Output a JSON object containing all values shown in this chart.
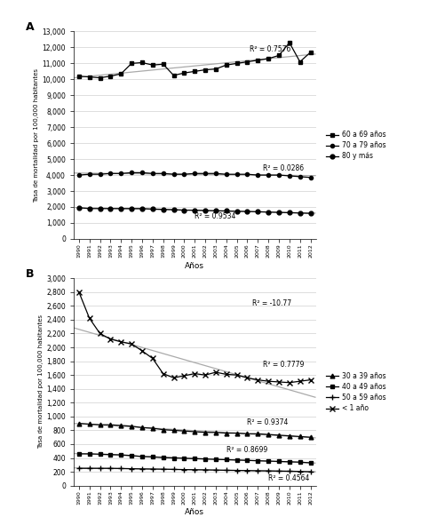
{
  "years": [
    1990,
    1991,
    1992,
    1993,
    1994,
    1995,
    1996,
    1997,
    1998,
    1999,
    2000,
    2001,
    2002,
    2003,
    2004,
    2005,
    2006,
    2007,
    2008,
    2009,
    2010,
    2011,
    2012
  ],
  "A_60_69": [
    10200,
    10150,
    10100,
    10200,
    10350,
    11000,
    11050,
    10900,
    10950,
    10250,
    10400,
    10500,
    10600,
    10650,
    10900,
    11000,
    11100,
    11200,
    11300,
    11500,
    12300,
    11100,
    11700
  ],
  "A_70_79": [
    4000,
    4050,
    4050,
    4100,
    4100,
    4150,
    4150,
    4100,
    4100,
    4050,
    4050,
    4100,
    4100,
    4100,
    4050,
    4050,
    4050,
    4000,
    4000,
    4000,
    3950,
    3900,
    3850
  ],
  "A_80mas": [
    1950,
    1900,
    1900,
    1900,
    1900,
    1900,
    1900,
    1870,
    1850,
    1830,
    1800,
    1800,
    1780,
    1760,
    1750,
    1730,
    1720,
    1700,
    1680,
    1660,
    1640,
    1620,
    1600
  ],
  "B_30_39": [
    900,
    890,
    880,
    880,
    870,
    860,
    840,
    830,
    810,
    800,
    790,
    780,
    770,
    770,
    760,
    760,
    750,
    750,
    740,
    730,
    720,
    710,
    700
  ],
  "B_40_49": [
    460,
    460,
    455,
    450,
    445,
    435,
    420,
    415,
    405,
    400,
    395,
    390,
    385,
    380,
    375,
    370,
    365,
    360,
    355,
    350,
    345,
    340,
    330
  ],
  "B_50_59": [
    250,
    250,
    250,
    250,
    248,
    245,
    242,
    240,
    238,
    235,
    232,
    230,
    228,
    225,
    222,
    220,
    218,
    215,
    213,
    210,
    208,
    205,
    200
  ],
  "B_lt1": [
    2800,
    2420,
    2200,
    2120,
    2080,
    2050,
    1950,
    1840,
    1620,
    1560,
    1590,
    1620,
    1600,
    1640,
    1610,
    1600,
    1560,
    1530,
    1510,
    1500,
    1490,
    1510,
    1530
  ],
  "panel_A_label": "A",
  "panel_B_label": "B",
  "legend_A": [
    "60 a 69 años",
    "70 a 79 años",
    "80 y más"
  ],
  "legend_B": [
    "30 a 39 años",
    "40 a 49 años",
    "50 a 59 años",
    "< 1 año"
  ],
  "r2_A_60_69": "R² = 0.7576",
  "r2_A_70_79": "R² = 0.0286",
  "r2_A_80mas": "R² = 0.9534",
  "r2_B_lt1": "R² = -10.77",
  "r2_B_50_59": "R² = 0.7779",
  "r2_B_30_39": "R² = 0.9374",
  "r2_B_40_49": "R² = 0.8699",
  "r2_B_extra": "R² = 0.4564",
  "ylabel": "Tasa de mortalidad por 100,000 habitantes",
  "xlabel": "Años",
  "A_ylim": [
    0,
    13000
  ],
  "A_yticks": [
    0,
    1000,
    2000,
    3000,
    4000,
    5000,
    6000,
    7000,
    8000,
    9000,
    10000,
    11000,
    12000,
    13000
  ],
  "B_ylim": [
    0,
    3000
  ],
  "B_yticks": [
    0,
    200,
    400,
    600,
    800,
    1000,
    1200,
    1400,
    1600,
    1800,
    2000,
    2200,
    2400,
    2600,
    2800,
    3000
  ],
  "bg_color": "#ffffff",
  "plot_bg": "#ffffff",
  "border_color": "#cccccc",
  "marker_60_69": "s",
  "marker_70_79": "o",
  "marker_80mas": "o",
  "marker_30_39": "^",
  "marker_40_49": "s",
  "marker_50_59": "+",
  "marker_lt1": "x"
}
